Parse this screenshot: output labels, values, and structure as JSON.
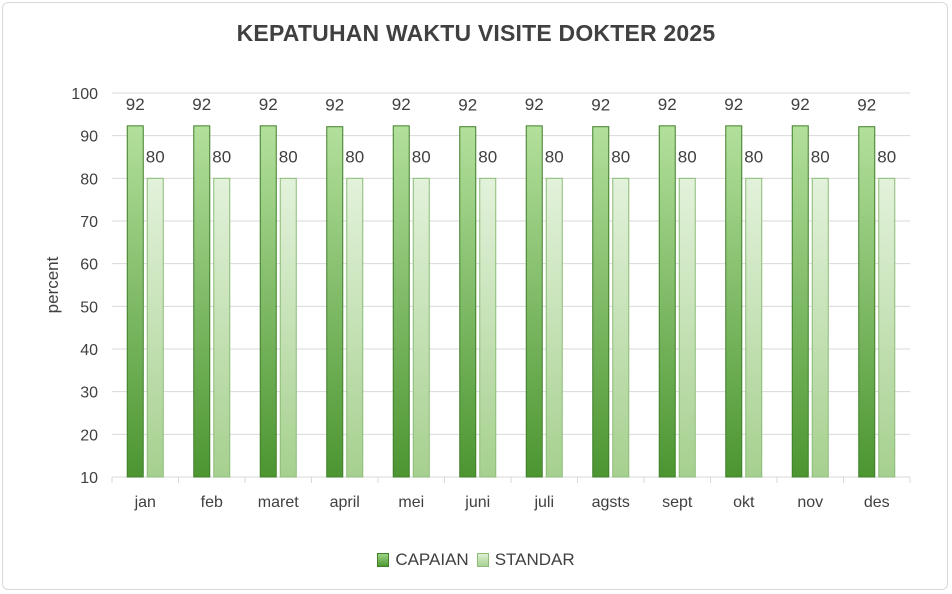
{
  "chart_data": {
    "type": "bar",
    "title": "KEPATUHAN WAKTU VISITE DOKTER 2025",
    "xlabel": "",
    "ylabel": "percent",
    "ylim": [
      10,
      100
    ],
    "yticks": [
      10,
      20,
      30,
      40,
      50,
      60,
      70,
      80,
      90,
      100
    ],
    "grid": true,
    "legend_position": "bottom",
    "categories": [
      "jan",
      "feb",
      "maret",
      "april",
      "mei",
      "juni",
      "juli",
      "agsts",
      "sept",
      "okt",
      "nov",
      "des"
    ],
    "series": [
      {
        "name": "CAPAIAN",
        "color": "#5a9e3c",
        "values": [
          92.3,
          92.3,
          92.3,
          92.1,
          92.3,
          92.1,
          92.3,
          92.1,
          92.3,
          92.3,
          92.3,
          92.1
        ],
        "data_labels": [
          "92",
          "92",
          "92",
          "92",
          "92",
          "92",
          "92",
          "92",
          "92",
          "92",
          "92",
          "92"
        ]
      },
      {
        "name": "STANDAR",
        "color": "#b9dca8",
        "values": [
          80,
          80,
          80,
          80,
          80,
          80,
          80,
          80,
          80,
          80,
          80,
          80
        ],
        "data_labels": [
          "80",
          "80",
          "80",
          "80",
          "80",
          "80",
          "80",
          "80",
          "80",
          "80",
          "80",
          "80"
        ]
      }
    ]
  }
}
